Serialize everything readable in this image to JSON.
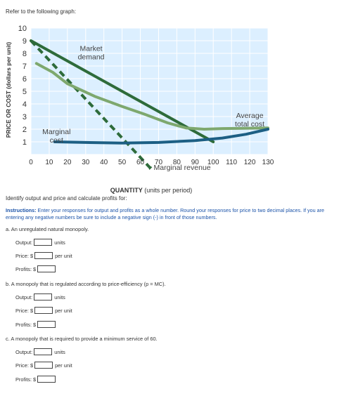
{
  "intro": "Refer to the following graph:",
  "chart_data": {
    "type": "line",
    "ylabel": "PRICE OR COST (dollars per unit)",
    "xlabel_bold": "QUANTITY",
    "xlabel_rest": " (units per period)",
    "xlim": [
      0,
      130
    ],
    "ylim": [
      0,
      10
    ],
    "x_ticks": [
      "0",
      "10",
      "20",
      "30",
      "40",
      "50",
      "60",
      "70",
      "80",
      "90",
      "100",
      "110",
      "120",
      "130"
    ],
    "y_ticks": [
      "1",
      "2",
      "3",
      "4",
      "5",
      "6",
      "7",
      "8",
      "9",
      "10"
    ],
    "series": [
      {
        "name": "Market demand",
        "color": "#2e6b3a",
        "style": "solid",
        "points": [
          [
            0,
            9
          ],
          [
            100,
            1
          ]
        ]
      },
      {
        "name": "Marginal revenue",
        "color": "#2e6b3a",
        "style": "dashed",
        "points": [
          [
            0,
            9
          ],
          [
            65,
            -1
          ]
        ]
      },
      {
        "name": "Average total cost",
        "color": "#7ea86e",
        "style": "solid",
        "points": [
          [
            3,
            7.2
          ],
          [
            12,
            6.5
          ],
          [
            20,
            5.6
          ],
          [
            35,
            4.6
          ],
          [
            50,
            3.8
          ],
          [
            62,
            3.2
          ],
          [
            75,
            2.5
          ],
          [
            85,
            2.1
          ],
          [
            95,
            2.0
          ],
          [
            105,
            2.05
          ],
          [
            130,
            2.1
          ]
        ]
      },
      {
        "name": "Marginal cost",
        "color": "#1c5f84",
        "style": "solid",
        "points": [
          [
            13,
            1
          ],
          [
            30,
            0.95
          ],
          [
            50,
            0.9
          ],
          [
            70,
            0.95
          ],
          [
            90,
            1.1
          ],
          [
            105,
            1.3
          ],
          [
            118,
            1.6
          ],
          [
            130,
            2.0
          ]
        ]
      }
    ],
    "labels": {
      "market_demand": [
        "Market",
        "demand"
      ],
      "average_total_cost": [
        "Average",
        "total cost"
      ],
      "marginal_cost": [
        "Marginal",
        "cost"
      ],
      "marginal_revenue": "Marginal revenue"
    },
    "colors": {
      "plot_bg": "#dcefff",
      "grid": "#ffffff"
    }
  },
  "question": "Identify output and price and calculate profits for:",
  "instructions_bold": "Instructions:",
  "instructions_text": " Enter your responses for output and profits as a whole number. Round your responses for price to two decimal places. If you are entering any negative numbers be sure to include a negative sign (-) in front of those numbers.",
  "parts": [
    {
      "title": "a. An unregulated natural monopoly.",
      "output_label": "Output:",
      "output_unit": "units",
      "price_label": "Price: $",
      "price_unit": "per unit",
      "profits_label": "Profits: $"
    },
    {
      "title": "b. A monopoly that is regulated according to price-efficiency (p = MC).",
      "output_label": "Output:",
      "output_unit": "units",
      "price_label": "Price: $",
      "price_unit": "per unit",
      "profits_label": "Profits: $"
    },
    {
      "title": "c. A monopoly that is required to provide a minimum service of 60.",
      "output_label": "Output:",
      "output_unit": "units",
      "price_label": "Price: $",
      "price_unit": "per unit",
      "profits_label": "Profits: $"
    }
  ]
}
